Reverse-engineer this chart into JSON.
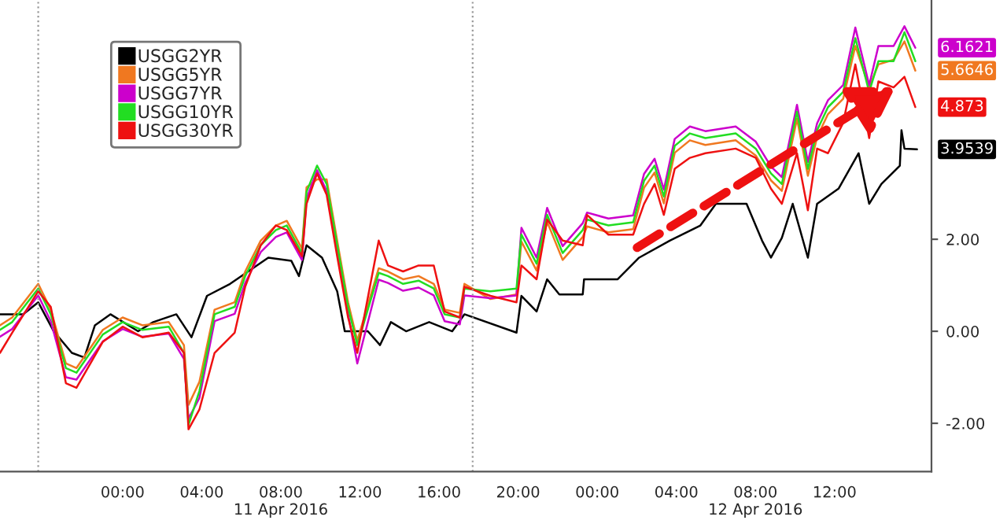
{
  "chart_data": {
    "type": "line",
    "x": [
      "2016-04-10T17:48",
      "2016-04-10T18:25",
      "2016-04-10T19:44",
      "2016-04-10T20:22",
      "2016-04-10T21:08",
      "2016-04-10T21:40",
      "2016-04-10T23:00",
      "2016-04-11T00:00",
      "2016-04-11T01:00",
      "2016-04-11T02:20",
      "2016-04-11T03:06",
      "2016-04-11T03:20",
      "2016-04-11T03:53",
      "2016-04-11T04:39",
      "2016-04-11T05:40",
      "2016-04-11T06:12",
      "2016-04-11T06:59",
      "2016-04-11T07:45",
      "2016-04-11T08:18",
      "2016-04-11T09:04",
      "2016-04-11T09:18",
      "2016-04-11T09:50",
      "2016-04-11T10:19",
      "2016-04-11T10:51",
      "2016-04-11T11:24",
      "2016-04-11T11:52",
      "2016-04-11T12:57",
      "2016-04-11T13:25",
      "2016-04-11T14:11",
      "2016-04-11T14:58",
      "2016-04-11T15:44",
      "2016-04-11T16:17",
      "2016-04-11T17:03",
      "2016-04-11T17:17",
      "2016-04-11T18:36",
      "2016-04-11T19:55",
      "2016-04-11T20:10",
      "2016-04-11T20:56",
      "2016-04-11T21:28",
      "2016-04-11T22:15",
      "2016-04-11T23:16",
      "2016-04-11T23:29",
      "2016-04-12T00:34",
      "2016-04-12T01:49",
      "2016-04-12T02:22",
      "2016-04-12T02:54",
      "2016-04-12T03:22",
      "2016-04-12T03:55",
      "2016-04-12T04:41",
      "2016-04-12T05:28",
      "2016-04-12T07:00",
      "2016-04-12T08:01",
      "2016-04-12T08:47",
      "2016-04-12T09:20",
      "2016-04-12T10:06",
      "2016-04-12T10:39",
      "2016-04-12T11:07",
      "2016-04-12T11:40",
      "2016-04-12T12:26",
      "2016-04-12T13:03",
      "2016-04-12T13:45",
      "2016-04-12T14:13",
      "2016-04-12T14:59",
      "2016-04-12T15:32",
      "2016-04-12T16:05"
    ],
    "series": [
      {
        "name": "USGG2YR",
        "color": "#000000",
        "x": [
          "2016-04-10T17:48",
          "2016-04-10T18:58",
          "2016-04-10T19:44",
          "2016-04-10T20:31",
          "2016-04-10T21:26",
          "2016-04-10T22:04",
          "2016-04-10T22:36",
          "2016-04-10T23:23",
          "2016-04-11T00:47",
          "2016-04-11T01:33",
          "2016-04-11T02:43",
          "2016-04-11T03:29",
          "2016-04-11T04:16",
          "2016-04-11T05:26",
          "2016-04-11T06:35",
          "2016-04-11T07:22",
          "2016-04-11T08:32",
          "2016-04-11T08:55",
          "2016-04-11T09:18",
          "2016-04-11T10:05",
          "2016-04-11T10:51",
          "2016-04-11T11:14",
          "2016-04-11T12:24",
          "2016-04-11T13:01",
          "2016-04-11T13:34",
          "2016-04-11T14:20",
          "2016-04-11T15:30",
          "2016-04-11T16:40",
          "2016-04-11T17:17",
          "2016-04-11T19:55",
          "2016-04-11T20:10",
          "2016-04-11T20:56",
          "2016-04-11T21:28",
          "2016-04-11T22:05",
          "2016-04-11T23:16",
          "2016-04-11T23:20",
          "2016-04-12T01:02",
          "2016-04-12T02:07",
          "2016-04-12T03:40",
          "2016-04-12T05:13",
          "2016-04-12T06:00",
          "2016-04-12T07:33",
          "2016-04-12T08:20",
          "2016-04-12T08:47",
          "2016-04-12T09:20",
          "2016-04-12T09:53",
          "2016-04-12T10:39",
          "2016-04-12T11:07",
          "2016-04-12T12:12",
          "2016-04-12T13:13",
          "2016-04-12T13:45",
          "2016-04-12T14:22",
          "2016-04-12T15:18",
          "2016-04-12T15:23",
          "2016-04-12T15:32",
          "2016-04-12T16:10"
        ],
        "values": [
          0.37,
          0.37,
          0.63,
          0,
          -0.47,
          -0.57,
          0.13,
          0.37,
          0,
          0.2,
          0.37,
          -0.13,
          0.77,
          1.03,
          1.37,
          1.6,
          1.53,
          1.2,
          1.87,
          1.6,
          0.87,
          0,
          0,
          -0.3,
          0.2,
          0,
          0.2,
          0,
          0.37,
          -0.03,
          0.77,
          0.43,
          1.13,
          0.8,
          0.8,
          1.13,
          1.13,
          1.6,
          1.97,
          2.3,
          2.77,
          2.77,
          1.97,
          1.6,
          2.03,
          2.77,
          1.6,
          2.77,
          3.1,
          3.87,
          2.77,
          3.2,
          3.6,
          4.37,
          3.97,
          3.9539
        ],
        "value_labels": [
          null,
          null,
          null,
          null,
          null,
          null,
          null,
          null,
          null,
          null,
          null,
          null,
          null,
          null,
          null,
          null,
          null,
          null,
          null,
          null,
          null,
          null,
          null,
          null,
          null,
          null,
          null,
          null,
          null,
          null,
          null,
          null,
          null,
          null,
          null,
          null,
          null,
          null,
          null,
          null,
          null,
          null,
          null,
          null,
          null,
          null,
          null,
          null,
          null,
          null,
          null,
          null,
          null,
          null,
          null,
          "3.9539"
        ]
      },
      {
        "name": "USGG5YR",
        "color": "#f07820",
        "values": [
          0.13,
          0.3,
          1.03,
          0.47,
          -0.7,
          -0.8,
          0.03,
          0.3,
          0.13,
          0.2,
          -0.3,
          -1.6,
          -1.1,
          0.47,
          0.63,
          1.3,
          1.97,
          2.3,
          2.4,
          1.8,
          3.13,
          3.3,
          3.3,
          1.97,
          0.63,
          -0.2,
          1.37,
          1.3,
          1.13,
          1.2,
          1.03,
          0.47,
          0.4,
          1.03,
          0.7,
          0.8,
          1.95,
          1.32,
          2.38,
          1.55,
          2.05,
          2.28,
          2.15,
          2.22,
          3.12,
          3.45,
          2.78,
          3.88,
          4.15,
          4.05,
          4.15,
          3.82,
          3.28,
          3.05,
          4.62,
          3.38,
          4.22,
          4.72,
          5.05,
          6.2,
          5.3,
          5.8,
          5.9,
          6.3,
          5.6646
        ],
        "value_labels": [
          null,
          null,
          null,
          null,
          null,
          null,
          null,
          null,
          null,
          null,
          null,
          null,
          null,
          null,
          null,
          null,
          null,
          null,
          null,
          null,
          null,
          null,
          null,
          null,
          null,
          null,
          null,
          null,
          null,
          null,
          null,
          null,
          null,
          null,
          null,
          null,
          null,
          null,
          null,
          null,
          null,
          null,
          null,
          null,
          null,
          null,
          null,
          null,
          null,
          null,
          null,
          null,
          null,
          null,
          null,
          null,
          null,
          null,
          null,
          null,
          null,
          null,
          null,
          null,
          "5.6646"
        ]
      },
      {
        "name": "USGG7YR",
        "color": "#cc00cc",
        "values": [
          -0.12,
          0.05,
          0.78,
          0.22,
          -1.0,
          -1.05,
          -0.22,
          0.05,
          -0.12,
          -0.05,
          -0.6,
          -1.9,
          -1.45,
          0.22,
          0.38,
          1.05,
          1.72,
          2.05,
          2.15,
          1.55,
          2.88,
          3.5,
          3.05,
          1.72,
          0.38,
          -0.7,
          1.12,
          1.05,
          0.88,
          0.95,
          0.78,
          0.22,
          0.15,
          0.78,
          0.72,
          0.78,
          2.25,
          1.6,
          2.68,
          1.85,
          2.35,
          2.58,
          2.45,
          2.52,
          3.42,
          3.75,
          3.08,
          4.18,
          4.45,
          4.35,
          4.45,
          4.12,
          3.58,
          3.35,
          4.92,
          3.68,
          4.52,
          5.02,
          5.35,
          6.6,
          5.35,
          6.2,
          6.2,
          6.63,
          6.1621
        ],
        "value_labels": [
          null,
          null,
          null,
          null,
          null,
          null,
          null,
          null,
          null,
          null,
          null,
          null,
          null,
          null,
          null,
          null,
          null,
          null,
          null,
          null,
          null,
          null,
          null,
          null,
          null,
          null,
          null,
          null,
          null,
          null,
          null,
          null,
          null,
          null,
          null,
          null,
          null,
          null,
          null,
          null,
          null,
          null,
          null,
          null,
          null,
          null,
          null,
          null,
          null,
          null,
          null,
          null,
          null,
          null,
          null,
          null,
          null,
          null,
          null,
          null,
          null,
          null,
          null,
          null,
          "6.1621"
        ]
      },
      {
        "name": "USGG10YR",
        "color": "#22dd22",
        "values": [
          0.03,
          0.2,
          0.93,
          0.37,
          -0.8,
          -0.9,
          -0.07,
          0.2,
          0.03,
          0.1,
          -0.47,
          -2.03,
          -1.3,
          0.37,
          0.53,
          1.2,
          1.87,
          2.2,
          2.3,
          1.7,
          3.03,
          3.6,
          3.2,
          1.87,
          0.53,
          -0.3,
          1.27,
          1.2,
          1.03,
          1.1,
          0.93,
          0.37,
          0.3,
          0.93,
          0.87,
          0.93,
          2.1,
          1.47,
          2.53,
          1.7,
          2.2,
          2.43,
          2.3,
          2.37,
          3.27,
          3.6,
          2.93,
          4.03,
          4.3,
          4.2,
          4.3,
          3.97,
          3.43,
          3.2,
          4.77,
          3.53,
          4.37,
          4.87,
          5.2,
          6.37,
          5.2,
          5.87,
          5.87,
          6.5,
          5.87
        ]
      },
      {
        "name": "USGG30YR",
        "color": "#ee1111",
        "values": [
          -0.47,
          -0.03,
          0.87,
          0.53,
          -1.13,
          -1.23,
          -0.23,
          0.1,
          -0.13,
          -0.03,
          -0.47,
          -2.13,
          -1.7,
          -0.47,
          -0.03,
          0.97,
          1.87,
          2.3,
          2.2,
          1.63,
          2.77,
          3.43,
          2.97,
          1.63,
          0.3,
          -0.47,
          1.97,
          1.43,
          1.3,
          1.43,
          1.43,
          0.43,
          0.3,
          0.97,
          0.77,
          0.63,
          1.43,
          1.13,
          2.43,
          1.97,
          1.87,
          2.53,
          2.1,
          2.1,
          2.77,
          3.2,
          2.53,
          3.53,
          3.77,
          3.87,
          3.97,
          3.77,
          3.1,
          2.77,
          3.87,
          2.63,
          3.97,
          3.87,
          4.53,
          5.8,
          4.2,
          5.43,
          5.3,
          5.53,
          4.873
        ],
        "value_labels": [
          null,
          null,
          null,
          null,
          null,
          null,
          null,
          null,
          null,
          null,
          null,
          null,
          null,
          null,
          null,
          null,
          null,
          null,
          null,
          null,
          null,
          null,
          null,
          null,
          null,
          null,
          null,
          null,
          null,
          null,
          null,
          null,
          null,
          null,
          null,
          null,
          null,
          null,
          null,
          null,
          null,
          null,
          null,
          null,
          null,
          null,
          null,
          null,
          null,
          null,
          null,
          null,
          null,
          null,
          null,
          null,
          null,
          null,
          null,
          null,
          null,
          null,
          null,
          null,
          "4.873"
        ]
      }
    ],
    "xlim": [
      "2016-04-10T17:48",
      "2016-04-12T16:54"
    ],
    "xticks": [
      {
        "value": "2016-04-11T00:00",
        "label": "00:00"
      },
      {
        "value": "2016-04-11T04:00",
        "label": "04:00"
      },
      {
        "value": "2016-04-11T08:00",
        "label": "08:00\n11 Apr 2016"
      },
      {
        "value": "2016-04-11T12:00",
        "label": "12:00"
      },
      {
        "value": "2016-04-11T16:00",
        "label": "16:00"
      },
      {
        "value": "2016-04-11T20:00",
        "label": "20:00"
      },
      {
        "value": "2016-04-12T00:00",
        "label": "00:00"
      },
      {
        "value": "2016-04-12T04:00",
        "label": "04:00"
      },
      {
        "value": "2016-04-12T08:00",
        "label": "08:00\n12 Apr 2016"
      },
      {
        "value": "2016-04-12T12:00",
        "label": "12:00"
      }
    ],
    "ylim": [
      -3.05,
      7.2
    ],
    "yticks": [
      {
        "value": -2,
        "label": "-2.00"
      },
      {
        "value": 0,
        "label": "0.00"
      },
      {
        "value": 2,
        "label": "2.00"
      }
    ],
    "ref_lines": [
      {
        "axis": "x",
        "value": "2016-04-10T19:44",
        "color": "#999999",
        "line_style": "dotted"
      },
      {
        "axis": "x",
        "value": "2016-04-11T17:42",
        "color": "#999999",
        "line_style": "dotted"
      }
    ],
    "legend": "top left",
    "grid": false
  }
}
